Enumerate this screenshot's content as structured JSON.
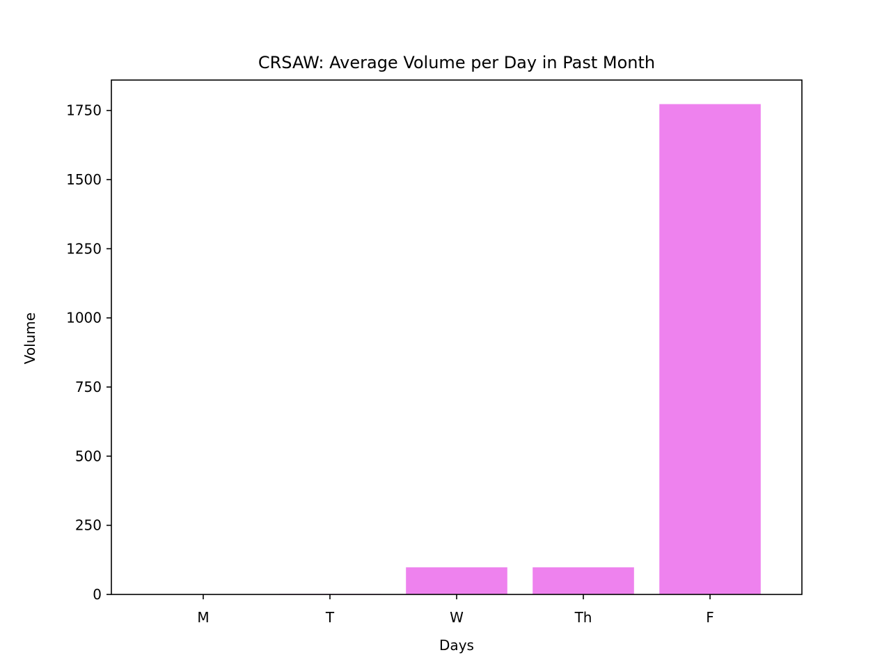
{
  "chart_data": {
    "type": "bar",
    "title": "CRSAW: Average Volume per Day in Past Month",
    "xlabel": "Days",
    "ylabel": "Volume",
    "categories": [
      "M",
      "T",
      "W",
      "Th",
      "F"
    ],
    "values": [
      0,
      2,
      98,
      98,
      1773
    ],
    "ylim": [
      0,
      1860
    ],
    "yticks": [
      0,
      250,
      500,
      750,
      1000,
      1250,
      1500,
      1750
    ],
    "bar_color": "#ee82ee",
    "grid": false,
    "legend": "none"
  }
}
